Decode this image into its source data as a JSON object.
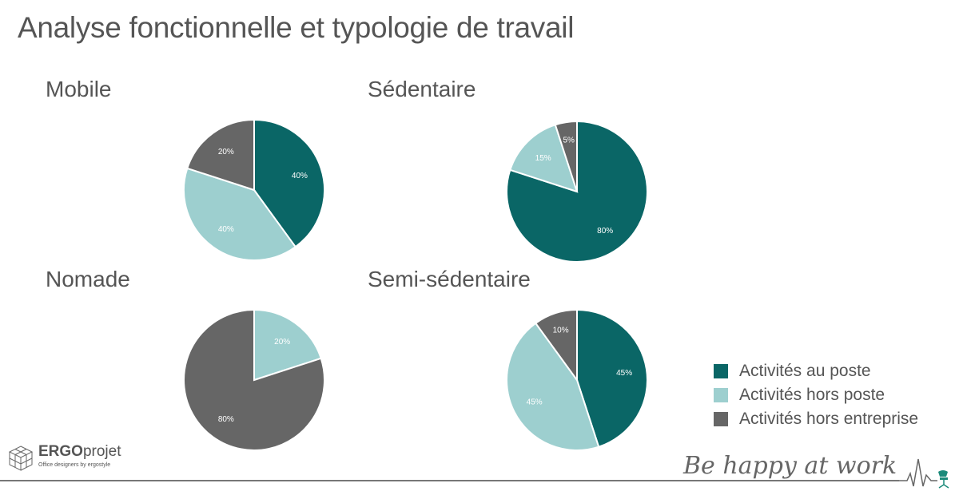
{
  "title": "Analyse fonctionnelle et typologie de travail",
  "colors": {
    "Activités au poste": "#0a6666",
    "Activités hors poste": "#9dcfcf",
    "Activités hors entreprise": "#666666"
  },
  "legend": {
    "items": [
      "Activités au poste",
      "Activités hors poste",
      "Activités hors entreprise"
    ]
  },
  "chart_data": [
    {
      "type": "pie",
      "title": "Mobile",
      "categories": [
        "Activités au poste",
        "Activités hors poste",
        "Activités hors entreprise"
      ],
      "values": [
        40,
        40,
        20
      ],
      "labels": [
        "40%",
        "40%",
        "20%"
      ]
    },
    {
      "type": "pie",
      "title": "Sédentaire",
      "categories": [
        "Activités au poste",
        "Activités hors poste",
        "Activités hors entreprise"
      ],
      "values": [
        80,
        15,
        5
      ],
      "labels": [
        "80%",
        "15%",
        "5%"
      ]
    },
    {
      "type": "pie",
      "title": "Nomade",
      "categories": [
        "Activités au poste",
        "Activités hors poste",
        "Activités hors entreprise"
      ],
      "values": [
        0,
        20,
        80
      ],
      "labels": [
        "",
        "20%",
        "80%"
      ]
    },
    {
      "type": "pie",
      "title": "Semi-sédentaire",
      "categories": [
        "Activités au poste",
        "Activités hors poste",
        "Activités hors entreprise"
      ],
      "values": [
        45,
        45,
        10
      ],
      "labels": [
        "45%",
        "45%",
        "10%"
      ]
    }
  ],
  "logo": {
    "brand_bold": "ERGO",
    "brand_light": "projet",
    "tagline": "Office designers by ergostyle"
  },
  "signature": "Be happy at work"
}
